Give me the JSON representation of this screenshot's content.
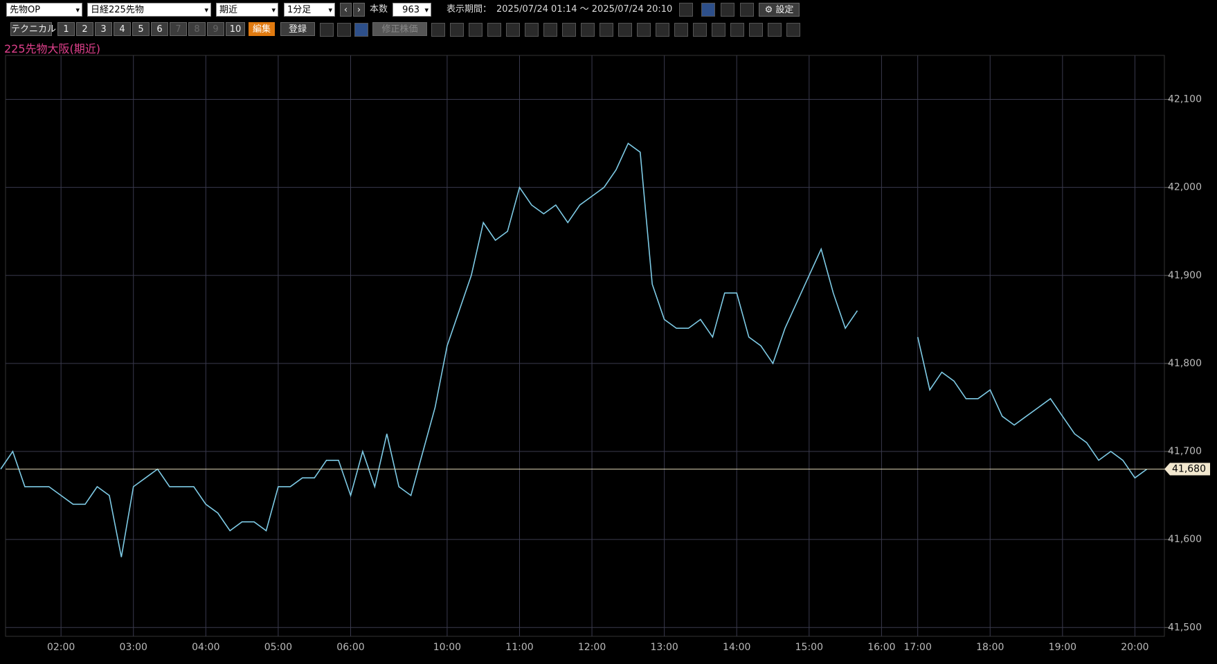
{
  "toolbar": {
    "symbol_type": "先物OP",
    "symbol": "日経225先物",
    "contract": "期近",
    "interval": "1分足",
    "count_label": "本数",
    "count": "963",
    "period_label": "表示期間：",
    "period": "2025/07/24 01:14 ～ 2025/07/24 20:10",
    "settings": "設定",
    "technical": "テクニカル",
    "presets": [
      "1",
      "2",
      "3",
      "4",
      "5",
      "6",
      "7",
      "8",
      "9",
      "10"
    ],
    "edit": "編集",
    "register": "登録",
    "adjusted": "修正株価"
  },
  "chart_data": {
    "type": "line",
    "title": "225先物大阪(期近)",
    "categories": [
      null,
      null,
      null,
      null,
      null,
      "02:00",
      null,
      null,
      null,
      null,
      null,
      "03:00",
      null,
      null,
      null,
      null,
      null,
      "04:00",
      null,
      null,
      null,
      null,
      null,
      "05:00",
      null,
      null,
      null,
      null,
      null,
      "06:00",
      null,
      null,
      null,
      null,
      null,
      null,
      null,
      "10:00",
      null,
      null,
      null,
      null,
      null,
      "11:00",
      null,
      null,
      null,
      null,
      null,
      "12:00",
      null,
      null,
      null,
      null,
      null,
      "13:00",
      null,
      null,
      null,
      null,
      null,
      "14:00",
      null,
      null,
      null,
      null,
      null,
      "15:00",
      null,
      null,
      null,
      null,
      null,
      "16:00",
      null,
      null,
      "17:00",
      null,
      null,
      null,
      null,
      null,
      "18:00",
      null,
      null,
      null,
      null,
      null,
      "19:00",
      null,
      null,
      null,
      null,
      null,
      "20:00",
      null
    ],
    "series": [
      {
        "color": "#7ecbe6",
        "values": [
          41680,
          41700,
          41660,
          41660,
          41660,
          41650,
          41640,
          41640,
          41660,
          41650,
          41580,
          41660,
          41670,
          41680,
          41660,
          41660,
          41660,
          41640,
          41630,
          41610,
          41620,
          41620,
          41610,
          41660,
          41660,
          41670,
          41670,
          41690,
          41690,
          41650,
          41700,
          41660,
          41720,
          41660,
          41650,
          41700,
          41750,
          41820,
          41860,
          41900,
          41960,
          41940,
          41950,
          42000,
          41980,
          41970,
          41980,
          41960,
          41980,
          41990,
          42000,
          42020,
          42050,
          42040,
          41890,
          41850,
          41840,
          41840,
          41850,
          41830,
          41880,
          41880,
          41830,
          41820,
          41800,
          41840,
          41870,
          41900,
          41930,
          41880,
          41840,
          41860,
          null,
          null,
          null,
          null,
          41830,
          41770,
          41790,
          41780,
          41760,
          41760,
          41770,
          41740,
          41730,
          41740,
          41750,
          41760,
          41740,
          41720,
          41710,
          41690,
          41700,
          41690,
          41670,
          41680
        ]
      }
    ],
    "ylim": [
      41490,
      42150
    ],
    "yticks": [
      {
        "value": 41500,
        "label": "41,500"
      },
      {
        "value": 41600,
        "label": "41,600"
      },
      {
        "value": 41700,
        "label": "41,700"
      },
      {
        "value": 41800,
        "label": "41,800"
      },
      {
        "value": 41900,
        "label": "41,900"
      },
      {
        "value": 42000,
        "label": "42,000"
      },
      {
        "value": 42100,
        "label": "42,100"
      }
    ],
    "last_price": {
      "value": 41680,
      "label": "41,680"
    },
    "grid": true
  }
}
